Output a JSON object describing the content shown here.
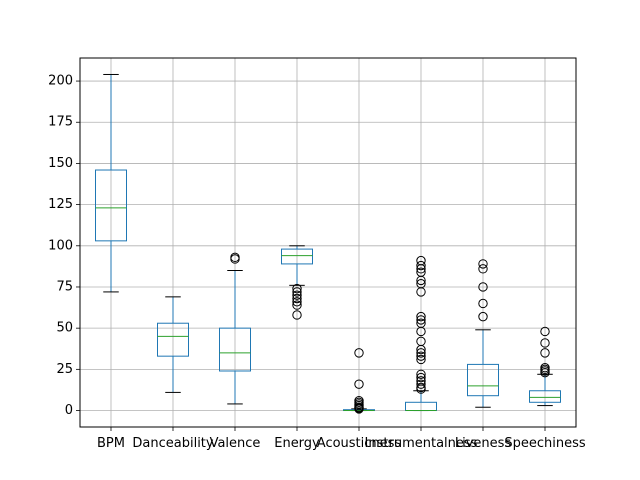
{
  "chart_data": {
    "type": "boxplot",
    "title": "",
    "xlabel": "",
    "ylabel": "",
    "ylim": [
      -10,
      214
    ],
    "yticks": [
      0,
      25,
      50,
      75,
      100,
      125,
      150,
      175,
      200
    ],
    "grid": true,
    "colors": {
      "box": "#1f77b4",
      "median": "#2ca02c",
      "whisker": "#000000",
      "flier": "#000000",
      "grid": "#b0b0b0"
    },
    "categories": [
      "BPM",
      "Danceability",
      "Valence",
      "Energy",
      "Acousticness",
      "Instrumentalness",
      "Liveness",
      "Speechiness"
    ],
    "boxes": [
      {
        "name": "BPM",
        "whislo": 72,
        "q1": 103,
        "med": 123,
        "q3": 146,
        "whishi": 204,
        "fliers": []
      },
      {
        "name": "Danceability",
        "whislo": 11,
        "q1": 33,
        "med": 45,
        "q3": 53,
        "whishi": 69,
        "fliers": []
      },
      {
        "name": "Valence",
        "whislo": 4,
        "q1": 24,
        "med": 35,
        "q3": 50,
        "whishi": 85,
        "fliers": [
          92,
          93
        ]
      },
      {
        "name": "Energy",
        "whislo": 76,
        "q1": 89,
        "med": 94,
        "q3": 98,
        "whishi": 100,
        "fliers": [
          74,
          72,
          70,
          68,
          66,
          64,
          58
        ]
      },
      {
        "name": "Acousticness",
        "whislo": 0,
        "q1": 0,
        "med": 0,
        "q3": 0.5,
        "whishi": 1,
        "fliers": [
          35,
          16,
          6,
          5,
          4,
          3,
          2,
          1.5,
          1
        ]
      },
      {
        "name": "Instrumentalness",
        "whislo": 0,
        "q1": 0,
        "med": 0,
        "q3": 5,
        "whishi": 12,
        "fliers": [
          91,
          88,
          86,
          84,
          79,
          77,
          72,
          57,
          55,
          53,
          48,
          42,
          37,
          35,
          33,
          31,
          22,
          20,
          18,
          16,
          14,
          13
        ]
      },
      {
        "name": "Liveness",
        "whislo": 2,
        "q1": 9,
        "med": 15,
        "q3": 28,
        "whishi": 49,
        "fliers": [
          89,
          86,
          75,
          65,
          57
        ]
      },
      {
        "name": "Speechiness",
        "whislo": 3,
        "q1": 5,
        "med": 8,
        "q3": 12,
        "whishi": 22,
        "fliers": [
          48,
          41,
          35,
          26,
          25,
          24,
          23
        ]
      }
    ]
  }
}
